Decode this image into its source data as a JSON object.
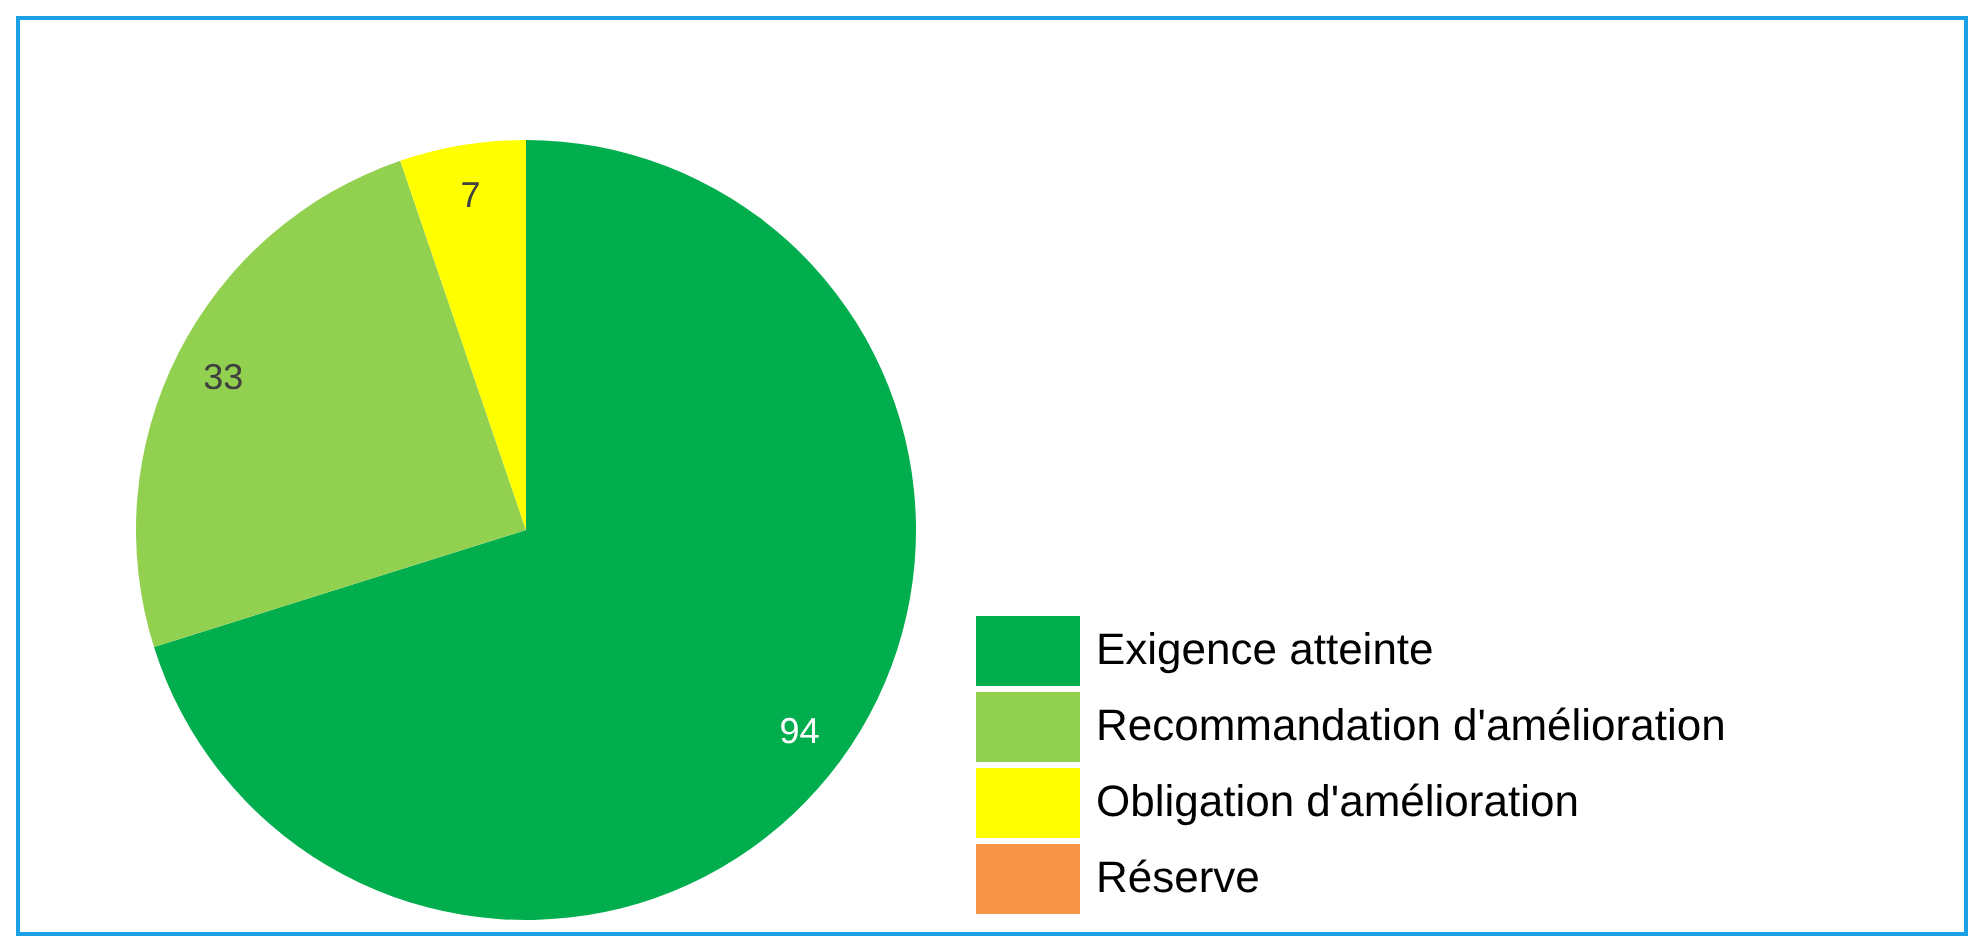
{
  "chart_data": {
    "type": "pie",
    "categories": [
      "Exigence atteinte",
      "Recommandation d'amélioration",
      "Obligation d'amélioration",
      "Réserve"
    ],
    "values": [
      94,
      33,
      7,
      0
    ],
    "colors": [
      "#00ae4d",
      "#92d050",
      "#ffff00",
      "#f79646"
    ],
    "value_labels": [
      "94",
      "33",
      "7",
      null
    ],
    "legend": "bottom right"
  }
}
